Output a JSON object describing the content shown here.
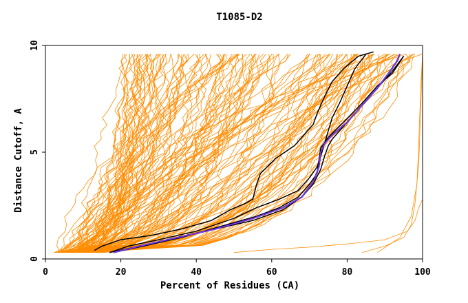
{
  "chart_data": {
    "type": "line",
    "title": "T1085-D2",
    "xlabel": "Percent of Residues (CA)",
    "ylabel": "Distance Cutoff, A",
    "xlim": [
      0,
      100
    ],
    "ylim": [
      0,
      10
    ],
    "x_ticks": [
      "0",
      "20",
      "40",
      "60",
      "80",
      "100"
    ],
    "y_ticks": [
      "0",
      "5",
      "10"
    ],
    "grid": false,
    "legend": "none",
    "colors": {
      "background_series": "#ff8c00",
      "highlight": "#000000",
      "best": "#2222dd",
      "best_inner": "#cc44cc"
    },
    "highlight_series": [
      {
        "x": [
          13,
          15,
          20,
          28,
          36,
          44,
          49,
          53,
          55,
          56,
          57,
          61,
          66,
          69,
          71,
          72,
          73,
          74,
          76,
          79,
          83,
          87
        ],
        "y": [
          0.4,
          0.6,
          0.9,
          1.1,
          1.4,
          1.8,
          2.3,
          2.6,
          2.8,
          3.5,
          4.0,
          4.7,
          5.3,
          5.9,
          6.3,
          6.8,
          7.2,
          7.6,
          8.3,
          8.9,
          9.5,
          9.7
        ]
      },
      {
        "x": [
          17,
          22,
          30,
          40,
          50,
          56,
          62,
          67,
          70,
          72,
          73,
          74,
          75,
          76,
          78,
          80,
          82,
          85
        ],
        "y": [
          0.3,
          0.6,
          0.9,
          1.3,
          1.9,
          2.4,
          2.8,
          3.2,
          3.8,
          4.3,
          4.8,
          5.4,
          6.0,
          6.6,
          7.3,
          8.1,
          8.9,
          9.6
        ]
      },
      {
        "x": [
          17,
          25,
          35,
          45,
          55,
          63,
          68,
          71,
          73,
          74,
          75,
          76,
          78,
          81,
          84,
          88,
          92,
          95
        ],
        "y": [
          0.3,
          0.6,
          1.0,
          1.4,
          1.8,
          2.3,
          2.9,
          3.5,
          4.2,
          4.8,
          5.3,
          5.6,
          6.0,
          6.6,
          7.2,
          8.0,
          8.8,
          9.5
        ]
      },
      {
        "x": [
          18,
          26,
          36,
          46,
          56,
          62,
          67,
          70,
          72,
          72.5,
          73,
          75,
          79,
          84,
          88,
          92,
          95
        ],
        "y": [
          0.3,
          0.6,
          1.0,
          1.5,
          2.0,
          2.4,
          2.9,
          3.5,
          4.0,
          4.6,
          5.2,
          5.7,
          6.4,
          7.3,
          8.1,
          8.7,
          9.5
        ]
      }
    ],
    "best_series": {
      "x": [
        18,
        25,
        35,
        45,
        55,
        63,
        68,
        71,
        72.5,
        73,
        74,
        76,
        80,
        84,
        88,
        91,
        93,
        94
      ],
      "y": [
        0.3,
        0.6,
        1.0,
        1.4,
        1.9,
        2.4,
        2.9,
        3.6,
        4.3,
        5.0,
        5.4,
        5.8,
        6.4,
        7.2,
        8.0,
        8.7,
        9.2,
        9.6
      ]
    }
  }
}
